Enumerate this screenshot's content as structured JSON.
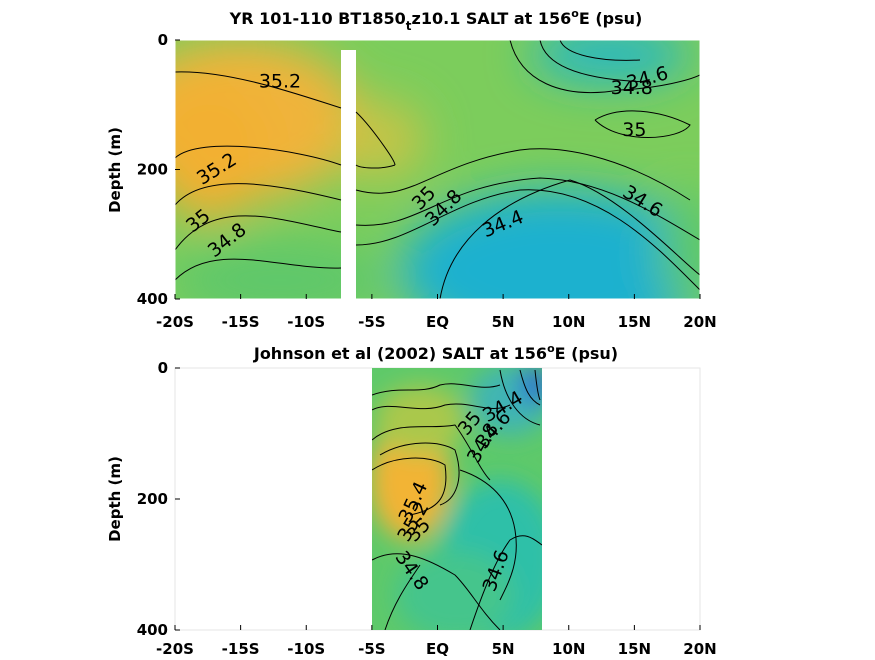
{
  "colors": {
    "salty": "#f2b535",
    "mid": "#79cc5a",
    "fresh": "#19b0d3",
    "freshest": "#1f6fd8",
    "contour": "#000000",
    "gap": "#ffffff"
  },
  "chart_data": [
    {
      "type": "heatmap",
      "title_parts": [
        "YR 101-110 BT1850",
        "t",
        "z10.1 SALT at 156",
        "o",
        "E (psu)"
      ],
      "ylabel": "Depth (m)",
      "x_ticks": [
        "-20S",
        "-15S",
        "-10S",
        "-5S",
        "EQ",
        "5N",
        "10N",
        "15N",
        "20N"
      ],
      "x_tick_values": [
        -20,
        -15,
        -10,
        -5,
        0,
        5,
        10,
        15,
        20
      ],
      "y_ticks": [
        "0",
        "200",
        "400"
      ],
      "y_tick_values": [
        0,
        200,
        400
      ],
      "xlim": [
        -20,
        20
      ],
      "ylim": [
        0,
        400
      ],
      "y_reversed": true,
      "missing_band_lat": [
        -7.5,
        -6.4
      ],
      "contour_labels": [
        {
          "text": "35.2",
          "lat": -12.0,
          "depth": 65
        },
        {
          "text": "35.2",
          "lat": -16.8,
          "depth": 200
        },
        {
          "text": "35",
          "lat": -18.2,
          "depth": 280
        },
        {
          "text": "34.8",
          "lat": -16.0,
          "depth": 310
        },
        {
          "text": "35",
          "lat": -1.0,
          "depth": 245
        },
        {
          "text": "34.8",
          "lat": 0.5,
          "depth": 260
        },
        {
          "text": "34.4",
          "lat": 5.0,
          "depth": 285
        },
        {
          "text": "34.6",
          "lat": 16.0,
          "depth": 60
        },
        {
          "text": "34.8",
          "lat": 14.8,
          "depth": 75
        },
        {
          "text": "35",
          "lat": 15.0,
          "depth": 140
        },
        {
          "text": "34.6",
          "lat": 15.6,
          "depth": 250
        }
      ]
    },
    {
      "type": "heatmap",
      "title_parts": [
        "Johnson et al (2002) SALT at 156",
        "o",
        "E (psu)"
      ],
      "ylabel": "Depth (m)",
      "x_ticks": [
        "-20S",
        "-15S",
        "-10S",
        "-5S",
        "EQ",
        "5N",
        "10N",
        "15N",
        "20N"
      ],
      "x_tick_values": [
        -20,
        -15,
        -10,
        -5,
        0,
        5,
        10,
        15,
        20
      ],
      "y_ticks": [
        "0",
        "200",
        "400"
      ],
      "y_tick_values": [
        0,
        200,
        400
      ],
      "xlim": [
        -20,
        20
      ],
      "ylim": [
        0,
        400
      ],
      "y_reversed": true,
      "data_lat_range": [
        -5,
        8
      ],
      "contour_labels": [
        {
          "text": "34.4",
          "lat": 5.0,
          "depth": 60
        },
        {
          "text": "34.6",
          "lat": 4.3,
          "depth": 95
        },
        {
          "text": "34.8",
          "lat": 3.5,
          "depth": 115
        },
        {
          "text": "35",
          "lat": 2.5,
          "depth": 85
        },
        {
          "text": "35.4",
          "lat": -1.8,
          "depth": 205
        },
        {
          "text": "35.2",
          "lat": -1.8,
          "depth": 235
        },
        {
          "text": "35",
          "lat": -1.4,
          "depth": 248
        },
        {
          "text": "34.8",
          "lat": -2.0,
          "depth": 310
        },
        {
          "text": "34.6",
          "lat": 4.5,
          "depth": 310
        }
      ]
    }
  ]
}
